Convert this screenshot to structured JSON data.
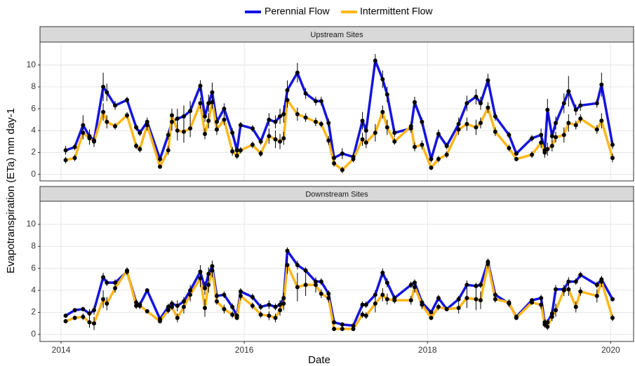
{
  "chart_data": {
    "type": "line",
    "x_label": "Date",
    "y_label": "Evapotranspiration (ETa) mm day-1",
    "legend": "top",
    "series": [
      {
        "name": "Perennial Flow",
        "color": "#1414e0"
      },
      {
        "name": "Intermittent Flow",
        "color": "#ffb719"
      }
    ],
    "xlim": [
      2013.77,
      2020.25
    ],
    "xticks": [
      2014,
      2016,
      2018,
      2020
    ],
    "grid": true,
    "x": [
      2014.05,
      2014.15,
      2014.24,
      2014.31,
      2014.36,
      2014.46,
      2014.5,
      2014.59,
      2014.72,
      2014.82,
      2014.86,
      2014.94,
      2015.08,
      2015.17,
      2015.21,
      2015.27,
      2015.34,
      2015.41,
      2015.52,
      2015.57,
      2015.61,
      2015.65,
      2015.7,
      2015.78,
      2015.87,
      2015.92,
      2015.96,
      2016.09,
      2016.18,
      2016.27,
      2016.34,
      2016.39,
      2016.43,
      2016.47,
      2016.58,
      2016.67,
      2016.78,
      2016.84,
      2016.92,
      2016.98,
      2017.07,
      2017.19,
      2017.29,
      2017.33,
      2017.43,
      2017.51,
      2017.56,
      2017.64,
      2017.82,
      2017.86,
      2017.94,
      2018.04,
      2018.12,
      2018.21,
      2018.34,
      2018.43,
      2018.53,
      2018.58,
      2018.66,
      2018.74,
      2018.89,
      2018.97,
      2019.14,
      2019.24,
      2019.28,
      2019.31,
      2019.36,
      2019.4,
      2019.49,
      2019.54,
      2019.62,
      2019.67,
      2019.85,
      2019.9,
      2020.02
    ],
    "facets": [
      {
        "title": "Upstream Sites",
        "ylim": [
          -0.6,
          12.1
        ],
        "yticks": [
          0,
          2,
          4,
          6,
          8,
          10
        ],
        "series": [
          {
            "values": [
              2.2,
              2.5,
              4.5,
              3.5,
              3.1,
              8.0,
              7.5,
              6.3,
              6.8,
              4.3,
              3.8,
              4.8,
              1.4,
              3.6,
              4.8,
              5.1,
              5.3,
              5.8,
              8.1,
              5.3,
              6.5,
              7.5,
              4.8,
              6.0,
              3.8,
              2.2,
              4.5,
              4.2,
              3.0,
              5.0,
              4.8,
              5.3,
              5.5,
              7.7,
              9.3,
              7.4,
              6.7,
              6.7,
              4.7,
              1.5,
              1.9,
              1.6,
              4.9,
              4.0,
              10.4,
              8.7,
              7.3,
              3.8,
              4.2,
              6.6,
              4.8,
              1.4,
              3.7,
              2.6,
              4.6,
              6.5,
              7.1,
              6.5,
              8.6,
              5.3,
              3.6,
              1.9,
              3.3,
              3.6,
              2.2,
              5.9,
              3.5,
              4.7,
              6.5,
              7.6,
              5.9,
              6.3,
              6.5,
              8.2,
              2.7
            ],
            "errors": [
              0.4,
              0.3,
              0.9,
              0.6,
              0.5,
              1.3,
              0.8,
              0.4,
              0.3,
              0.3,
              0.3,
              0.4,
              0.3,
              0.4,
              0.8,
              0.9,
              1.0,
              0.9,
              0.5,
              0.5,
              0.8,
              0.9,
              0.5,
              0.5,
              0.4,
              0.3,
              0.3,
              0.3,
              0.3,
              0.6,
              0.6,
              0.7,
              0.8,
              0.9,
              0.9,
              0.5,
              0.4,
              0.4,
              0.4,
              0.3,
              0.5,
              0.3,
              0.8,
              0.6,
              0.6,
              0.8,
              0.7,
              0.4,
              0.4,
              0.5,
              0.4,
              0.3,
              0.4,
              0.3,
              0.6,
              0.7,
              0.7,
              0.6,
              0.6,
              0.4,
              0.3,
              0.2,
              0.3,
              0.6,
              0.5,
              1.0,
              0.5,
              0.6,
              0.9,
              1.4,
              0.5,
              0.5,
              0.4,
              1.1,
              0.4
            ]
          },
          {
            "values": [
              1.3,
              1.5,
              3.8,
              3.3,
              3.0,
              5.7,
              4.8,
              4.4,
              5.4,
              2.6,
              2.3,
              4.5,
              0.7,
              2.2,
              5.4,
              4.0,
              3.9,
              4.2,
              6.5,
              3.7,
              4.9,
              6.6,
              4.1,
              5.0,
              2.1,
              1.7,
              2.2,
              2.7,
              1.9,
              3.5,
              3.2,
              3.0,
              3.3,
              6.8,
              5.5,
              5.2,
              4.8,
              4.6,
              3.1,
              1.0,
              0.4,
              1.4,
              3.2,
              2.9,
              3.8,
              5.7,
              4.3,
              3.0,
              4.4,
              2.5,
              2.7,
              0.6,
              1.4,
              1.8,
              4.1,
              4.6,
              4.3,
              4.7,
              6.1,
              3.9,
              2.4,
              1.4,
              1.8,
              2.9,
              2.0,
              2.3,
              2.6,
              3.4,
              3.6,
              4.7,
              4.5,
              5.1,
              4.1,
              4.9,
              1.5
            ],
            "errors": [
              0.3,
              0.3,
              0.6,
              0.6,
              0.5,
              0.8,
              0.6,
              0.3,
              0.3,
              0.3,
              0.3,
              0.5,
              0.2,
              0.4,
              0.6,
              0.9,
              1.0,
              0.8,
              0.5,
              0.5,
              0.7,
              0.6,
              0.5,
              0.5,
              0.4,
              0.3,
              0.3,
              0.3,
              0.3,
              0.7,
              0.8,
              0.7,
              0.6,
              0.7,
              0.6,
              0.4,
              0.4,
              0.3,
              0.4,
              0.3,
              0.3,
              0.3,
              0.6,
              0.5,
              0.8,
              0.6,
              0.7,
              0.3,
              0.4,
              0.4,
              0.4,
              0.2,
              0.3,
              0.3,
              0.5,
              0.6,
              0.7,
              0.5,
              0.5,
              0.4,
              0.3,
              0.2,
              0.3,
              0.5,
              0.5,
              0.6,
              0.5,
              0.5,
              0.7,
              0.8,
              0.4,
              0.4,
              0.4,
              0.7,
              0.4
            ]
          }
        ]
      },
      {
        "title": "Downstream Sites",
        "ylim": [
          -0.64,
          12.1
        ],
        "yticks": [
          0,
          2,
          4,
          6,
          8,
          10
        ],
        "series": [
          {
            "values": [
              1.7,
              2.2,
              2.3,
              1.9,
              2.2,
              5.2,
              4.7,
              4.7,
              5.7,
              2.9,
              2.7,
              4.0,
              1.4,
              2.5,
              2.8,
              2.6,
              3.0,
              4.0,
              5.7,
              4.2,
              5.5,
              6.2,
              3.5,
              3.6,
              2.5,
              1.7,
              3.9,
              3.4,
              2.5,
              2.7,
              2.5,
              2.7,
              3.3,
              7.6,
              6.3,
              5.8,
              4.8,
              4.8,
              3.7,
              1.1,
              0.9,
              0.8,
              2.7,
              2.7,
              3.6,
              5.6,
              4.7,
              3.3,
              4.5,
              4.7,
              2.9,
              2.0,
              3.3,
              2.3,
              3.2,
              4.5,
              4.4,
              4.5,
              6.6,
              3.6,
              2.8,
              1.6,
              3.1,
              3.3,
              1.1,
              1.1,
              1.9,
              4.1,
              4.1,
              4.8,
              4.8,
              5.4,
              4.5,
              5.0,
              3.2
            ],
            "errors": [
              0.2,
              0.2,
              0.2,
              0.4,
              0.4,
              0.4,
              0.3,
              0.3,
              0.3,
              0.3,
              0.3,
              0.2,
              0.2,
              0.3,
              0.3,
              0.5,
              0.4,
              0.5,
              0.6,
              0.6,
              0.6,
              0.5,
              0.3,
              0.3,
              0.3,
              0.2,
              0.3,
              0.3,
              0.3,
              0.4,
              0.3,
              0.4,
              0.5,
              0.3,
              0.4,
              0.3,
              0.3,
              0.3,
              0.3,
              0.2,
              0.2,
              0.2,
              0.3,
              0.3,
              0.4,
              0.4,
              0.4,
              0.3,
              0.3,
              0.3,
              0.3,
              0.2,
              0.3,
              0.2,
              0.3,
              0.4,
              0.3,
              0.3,
              0.3,
              0.3,
              0.3,
              0.2,
              0.2,
              0.3,
              0.3,
              0.3,
              0.4,
              0.4,
              0.3,
              0.4,
              0.3,
              0.3,
              0.3,
              0.3,
              0.2
            ]
          },
          {
            "values": [
              1.2,
              1.5,
              1.6,
              1.1,
              1.0,
              3.2,
              2.8,
              4.2,
              5.8,
              2.6,
              2.6,
              2.1,
              1.2,
              2.2,
              2.5,
              1.5,
              2.5,
              3.6,
              5.1,
              2.4,
              4.5,
              5.8,
              3.0,
              2.3,
              1.8,
              1.5,
              3.5,
              2.6,
              1.8,
              1.7,
              1.5,
              2.2,
              2.8,
              6.3,
              4.3,
              4.5,
              4.5,
              3.7,
              3.3,
              0.5,
              0.5,
              0.5,
              1.8,
              1.7,
              2.8,
              3.6,
              3.2,
              3.1,
              3.1,
              4.3,
              2.7,
              1.5,
              2.5,
              2.3,
              2.4,
              3.3,
              3.2,
              3.1,
              6.4,
              3.2,
              2.9,
              1.5,
              2.9,
              2.7,
              0.9,
              0.7,
              1.6,
              2.2,
              4.0,
              4.1,
              2.5,
              3.9,
              3.5,
              4.8,
              1.5
            ],
            "errors": [
              0.2,
              0.2,
              0.3,
              0.5,
              0.6,
              0.8,
              0.6,
              0.4,
              0.3,
              0.3,
              0.3,
              0.2,
              0.2,
              0.3,
              0.3,
              0.4,
              0.6,
              0.6,
              0.8,
              0.8,
              0.7,
              0.6,
              0.3,
              0.4,
              0.3,
              0.2,
              0.4,
              0.3,
              0.3,
              0.4,
              0.4,
              0.5,
              0.6,
              0.8,
              1.3,
              1.0,
              0.7,
              0.4,
              0.4,
              0.2,
              0.2,
              0.2,
              0.3,
              0.3,
              0.8,
              0.6,
              0.5,
              0.3,
              0.4,
              0.5,
              0.4,
              0.2,
              0.3,
              0.2,
              0.5,
              0.9,
              1.0,
              0.8,
              0.4,
              0.3,
              0.3,
              0.2,
              0.2,
              0.4,
              0.3,
              0.3,
              0.4,
              0.6,
              0.5,
              0.6,
              0.5,
              0.4,
              0.6,
              0.5,
              0.3
            ]
          }
        ]
      }
    ]
  }
}
